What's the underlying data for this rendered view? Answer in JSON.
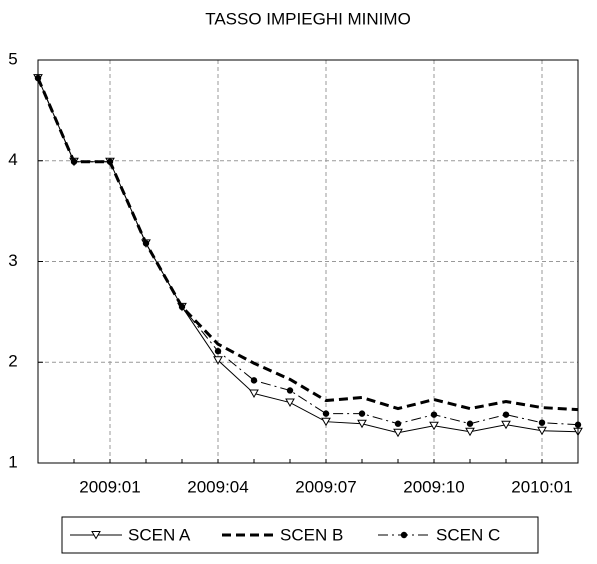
{
  "chart_data": {
    "type": "line",
    "title": "TASSO IMPIEGHI MINIMO",
    "categories": [
      null,
      null,
      "2009:01",
      null,
      null,
      "2009:04",
      null,
      null,
      "2009:07",
      null,
      null,
      "2009:10",
      null,
      null,
      "2010:01",
      null
    ],
    "series": [
      {
        "name": "SCEN A",
        "color": "#000000",
        "dash": "solid",
        "width": 1,
        "marker": "triangle-down",
        "values": [
          4.82,
          3.99,
          3.99,
          3.18,
          2.55,
          2.02,
          1.69,
          1.6,
          1.41,
          1.39,
          1.3,
          1.37,
          1.31,
          1.38,
          1.32,
          1.31
        ]
      },
      {
        "name": "SCEN B",
        "color": "#000000",
        "dash": "dashed",
        "width": 3,
        "marker": "none",
        "values": [
          4.82,
          3.99,
          3.99,
          3.18,
          2.55,
          2.18,
          1.99,
          1.83,
          1.62,
          1.65,
          1.54,
          1.63,
          1.54,
          1.61,
          1.55,
          1.53
        ]
      },
      {
        "name": "SCEN C",
        "color": "#000000",
        "dash": "dashdot",
        "width": 1,
        "marker": "circle",
        "values": [
          4.82,
          3.99,
          3.99,
          3.18,
          2.55,
          2.11,
          1.82,
          1.72,
          1.49,
          1.49,
          1.39,
          1.48,
          1.39,
          1.48,
          1.4,
          1.38
        ]
      }
    ],
    "ylim": [
      1,
      5
    ],
    "yticks": [
      1,
      2,
      3,
      4,
      5
    ],
    "grid": true,
    "legend": "bottom"
  }
}
